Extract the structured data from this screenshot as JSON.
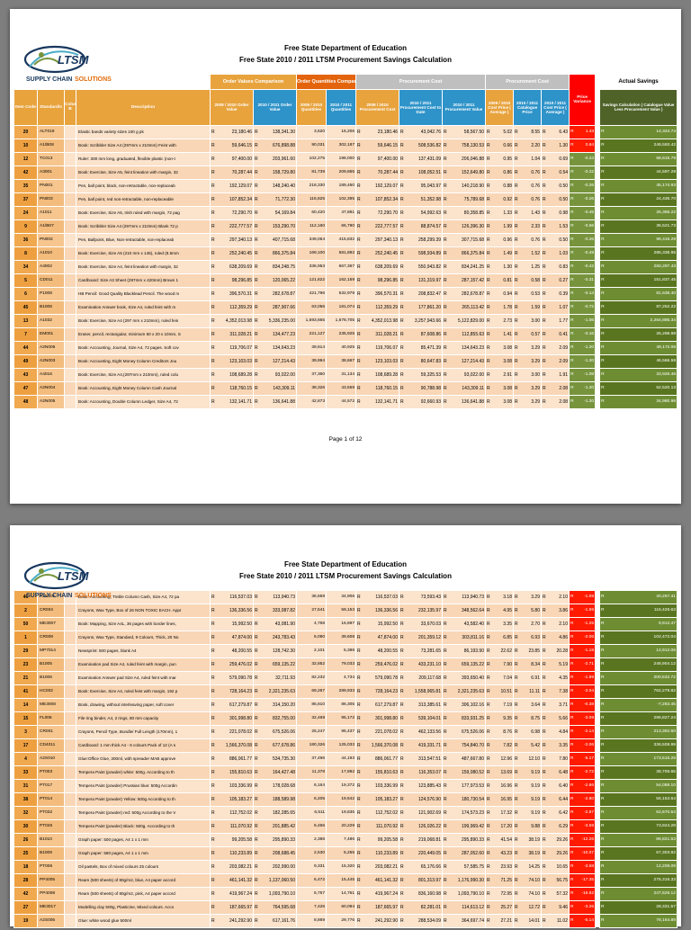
{
  "doc": {
    "title1": "Free State Department of Education",
    "title2": "Free State 2010 / 2011 LTSM Procurement  Savings Calculation",
    "footer1": "Page 1 of 12"
  },
  "logo": {
    "text": "LTSM",
    "tagline1": "SUPPLY CHAIN",
    "tagline2": "SOLUTIONS"
  },
  "table": {
    "currency": "R",
    "groups": {
      "order_values": "Order Values Comparison",
      "order_qty": "Order Quantities Comparison",
      "proc1": "Procurement Cost",
      "proc2": "Procurement Cost",
      "price_variance": "Price Variance",
      "actual_savings": "Actual Savings"
    },
    "cols": {
      "item": "Item Code",
      "std": "Standard/s",
      "colb": "Column B",
      "desc": "Description",
      "ov0910": "2009 / 2010 Order Value",
      "ov1011": "2010 / 2011 Order Value",
      "q0910": "2009 / 2010 Quantities",
      "q1011": "2010 / 2011 Quantities",
      "pc0910": "2009 / 2010 Procurement Cost",
      "pc1011": "2010 / 2011 Procurement Cost to Date",
      "pv1011": "2010 / 2011 Procurement Value",
      "cp0910": "2009 / 2010 Cost Price ( Average )",
      "cat1011": "2010 / 2011 Catalogue Price",
      "cp1011": "2010 / 2011 Cost Price ( Average )",
      "savings": "Savings Calculation ( Catalogue Value Less Procurement Value )"
    }
  },
  "pages": [
    {
      "rows": [
        [
          "20",
          "ALT019",
          "Elastic bands variety sizes 100 g pk",
          "23,180.46",
          "138,341.30",
          "3,620",
          "16,206",
          "23,180.46",
          "43,042.76",
          "58,567.50",
          "5.02",
          "8.55",
          "6.43",
          "1.43",
          "14,324.74",
          "r"
        ],
        [
          "10",
          "A1/B08",
          "Book: Scribbler Size A4 (297mm x 210mm) Feint with",
          "59,646.15",
          "676,898.88",
          "90,031",
          "302,187",
          "59,646.15",
          "508,536.82",
          "758,130.53",
          "0.66",
          "2.20",
          "1.30",
          "0.84",
          "249,593.42",
          "r"
        ],
        [
          "12",
          "TC013",
          "Ruler: 300 mm long, graduated, flexible plastic (non-t",
          "97,400.00",
          "203,961.60",
          "102,275",
          "198,000",
          "97,400.00",
          "137,431.09",
          "206,046.88",
          "0.95",
          "1.04",
          "0.69",
          "-0.24",
          "68,615.79",
          "g"
        ],
        [
          "42",
          "A3001",
          "Book: Exercise, Size A5, feint lineation with margin, 32",
          "70,287.44",
          "158,729.80",
          "81,739",
          "209,855",
          "70,287.44",
          "108,052.51",
          "152,649.80",
          "0.86",
          "0.76",
          "0.54",
          "-0.22",
          "44,597.29",
          "g"
        ],
        [
          "35",
          "PN001",
          "Pen, ball point, black, non-retractable, non-replaceab",
          "192,129.07",
          "148,240.40",
          "218,330",
          "189,460",
          "192,129.07",
          "95,043.97",
          "140,218.90",
          "0.88",
          "0.76",
          "0.50",
          "-0.26",
          "45,174.93",
          "g"
        ],
        [
          "37",
          "PN003",
          "Pen, ball point, red non-retractable, non-replaceable",
          "107,852.34",
          "71,772.30",
          "116,825",
          "102,395",
          "107,852.34",
          "51,352.98",
          "75,789.68",
          "0.92",
          "0.76",
          "0.50",
          "-0.26",
          "24,436.70",
          "g"
        ],
        [
          "24",
          "A1011",
          "Book: Exercise, Size A5, Irish ruled with margin, 72 pag",
          "72,290.70",
          "54,169.84",
          "60,420",
          "47,881",
          "72,290.70",
          "54,992.63",
          "80,358.85",
          "1.33",
          "1.43",
          "0.98",
          "-0.45",
          "25,366.22",
          "g"
        ],
        [
          "9",
          "A1/B07",
          "Book: Scribbler Size A4 (297mm x 210mm) Blank 72 p",
          "222,777.57",
          "153,290.70",
          "112,160",
          "65,790",
          "222,777.57",
          "88,874.57",
          "126,396.30",
          "1.99",
          "2.33",
          "1.53",
          "-0.56",
          "36,521.73",
          "g"
        ],
        [
          "36",
          "PN002",
          "Pen, Ballpoint, Blue, Non-retractable, non-replaceab",
          "297,340.13",
          "407,715.68",
          "349,064",
          "415,832",
          "297,340.13",
          "258,299.39",
          "307,715.68",
          "0.96",
          "0.76",
          "0.50",
          "-0.26",
          "99,416.29",
          "g"
        ],
        [
          "8",
          "A1010",
          "Book: Exercise, Size A5 (210 mm x 145), ruled (8.5mm",
          "252,240.45",
          "866,375.84",
          "169,100",
          "581,892",
          "252,240.45",
          "598,934.89",
          "866,375.84",
          "1.49",
          "1.52",
          "1.03",
          "-0.49",
          "285,338.95",
          "g"
        ],
        [
          "34",
          "A4002",
          "Book: Exercise, Size A4, feint lineation with margin, 32",
          "638,209.69",
          "834,248.75",
          "336,953",
          "667,367",
          "638,209.69",
          "550,943.82",
          "834,241.25",
          "1.30",
          "1.25",
          "0.83",
          "-0.42",
          "283,297.43",
          "g"
        ],
        [
          "5",
          "CD011",
          "Cardboard: Size A3 Sheet (297mm x 420mm) Brown 1",
          "98,296.85",
          "120,065.22",
          "121,622",
          "162,159",
          "98,296.85",
          "131,319.97",
          "287,157.42",
          "0.81",
          "0.58",
          "0.27",
          "-0.31",
          "151,837.45",
          "g"
        ],
        [
          "6",
          "P1008",
          "HB Pencil: Good Quality Blacklead Pencil. The wood m",
          "396,570.31",
          "282,678.87",
          "421,796",
          "532,979",
          "396,570.31",
          "208,832.47",
          "282,678.87",
          "0.94",
          "0.53",
          "0.39",
          "-0.14",
          "81,636.40",
          "g"
        ],
        [
          "45",
          "B1008",
          "Examination Answer book, Size A4, ruled feint with m",
          "112,359.29",
          "287,907.66",
          "63,056",
          "181,074",
          "112,359.29",
          "177,861.20",
          "265,113.42",
          "1.78",
          "1.59",
          "1.07",
          "-0.72",
          "87,252.22",
          "g"
        ],
        [
          "13",
          "A1032",
          "Book: Exercise, Size A4 (297 mm x 210mm), ruled fein",
          "4,352,013.98",
          "5,336,235.00",
          "1,593,665",
          "1,678,705",
          "4,352,013.98",
          "3,257,943.66",
          "5,122,829.00",
          "2.73",
          "3.00",
          "1.77",
          "-1.06",
          "2,264,885.34",
          "g"
        ],
        [
          "7",
          "EM001",
          "Eraser, pencil, rectangular, minimum 60 x 20 x 10mm, S",
          "311,028.21",
          "134,477.23",
          "221,127",
          "235,925",
          "311,028.21",
          "87,608.86",
          "112,855.63",
          "1.41",
          "0.57",
          "0.41",
          "-0.16",
          "25,298.98",
          "g"
        ],
        [
          "44",
          "A2N006",
          "Book: Accounting, Journal, Size A4, 72 pages. Soft cov",
          "119,706.07",
          "134,643.23",
          "39,814",
          "40,925",
          "119,706.07",
          "85,471.39",
          "134,643.23",
          "3.08",
          "3.29",
          "2.09",
          "-1.20",
          "49,172.06",
          "g"
        ],
        [
          "49",
          "A2N003",
          "Book: Accounting, Eight Money Column Creditors Jou",
          "123,103.03",
          "127,214.43",
          "39,994",
          "38,667",
          "123,103.03",
          "80,647.83",
          "127,214.43",
          "3.08",
          "3.29",
          "2.09",
          "-1.20",
          "46,566.59",
          "g"
        ],
        [
          "43",
          "A4016",
          "Book: Exercise, Size A4,(297mm x 210mm), ruled colu",
          "108,689.28",
          "93,022.00",
          "37,360",
          "31,134",
          "108,689.28",
          "59,325.53",
          "93,022.00",
          "2.91",
          "3.00",
          "1.91",
          "-1.08",
          "33,926.46",
          "g"
        ],
        [
          "47",
          "A2N004",
          "Book: Accounting, Eight Money Column Cash Journal",
          "118,760.15",
          "143,309.11",
          "38,326",
          "43,559",
          "118,760.15",
          "90,788.98",
          "143,309.11",
          "3.08",
          "3.29",
          "2.08",
          "-1.20",
          "52,520.13",
          "g"
        ],
        [
          "48",
          "A2N005",
          "Book: Accounting, Double Column Ledger, Size A4, 72",
          "132,141.71",
          "136,641.88",
          "42,873",
          "44,572",
          "132,141.71",
          "92,660.93",
          "136,641.88",
          "3.08",
          "3.29",
          "2.08",
          "-1.20",
          "34,980.96",
          "g"
        ]
      ]
    },
    {
      "rows": [
        [
          "46",
          "A2N001",
          "Book: Accounting, Treble Column Cash, Size A4, 72 pa",
          "116,537.03",
          "113,940.73",
          "36,659",
          "34,906",
          "116,537.03",
          "73,593.43",
          "113,940.73",
          "3.18",
          "3.29",
          "2.10",
          "-1.09",
          "40,267.41",
          "r"
        ],
        [
          "2",
          "CR004",
          "Crayons, Wax Type, Box of 26 NON TOXIC EACH. Appr",
          "136,336.56",
          "333,087.82",
          "27,541",
          "59,153",
          "136,336.56",
          "232,135.97",
          "348,562.64",
          "4.95",
          "5.80",
          "3.86",
          "-1.59",
          "116,426.63",
          "r"
        ],
        [
          "50",
          "ME3007",
          "Book: Mapping, Size A4L, 36 pages with border lines,",
          "15,992.50",
          "43,081.90",
          "4,768",
          "16,697",
          "15,992.50",
          "33,670.03",
          "43,582.40",
          "3.35",
          "2.70",
          "2.10",
          "-1.25",
          "9,912.47",
          "r"
        ],
        [
          "1",
          "CR009",
          "Crayons, Wax Type, Standard, 9 Colours, Thick, 20 No",
          "47,874.00",
          "243,783.43",
          "6,090",
          "39,608",
          "47,874.00",
          "201,359.12",
          "303,811.16",
          "6.85",
          "6.93",
          "4.86",
          "-2.06",
          "102,472.04",
          "r"
        ],
        [
          "29",
          "MP7014",
          "Newsprint: 500 pages, blank A4",
          "48,200.55",
          "128,742.30",
          "2,101",
          "5,398",
          "48,200.55",
          "73,281.65",
          "86,193.90",
          "22.62",
          "23.85",
          "20.28",
          "-1.19",
          "12,912.06",
          "r"
        ],
        [
          "23",
          "B1005",
          "Examination pad Size A4, ruled feint with margin, pun",
          "259,476.02",
          "659,135.22",
          "32,852",
          "79,033",
          "259,476.02",
          "433,231.10",
          "659,135.22",
          "7.90",
          "8.34",
          "5.19",
          "-2.71",
          "248,904.12",
          "r"
        ],
        [
          "21",
          "B1006",
          "Examination Answer pad Size A4, ruled feint with mar",
          "579,090.78",
          "32,711.93",
          "82,232",
          "4,734",
          "579,090.78",
          "209,117.68",
          "393,650.40",
          "7.04",
          "6.91",
          "4.35",
          "-1.99",
          "200,532.72",
          "r"
        ],
        [
          "41",
          "HC002",
          "Book: Exercise, Size A4, ruled feint with margin, 192 p",
          "728,164.23",
          "2,321,235.63",
          "69,287",
          "289,933",
          "728,164.23",
          "1,558,965.81",
          "2,321,235.63",
          "10.51",
          "11.11",
          "7.38",
          "-3.04",
          "762,279.82",
          "r"
        ],
        [
          "14",
          "ME3008",
          "Book, drawing, without interleaving paper, soft cover",
          "617,279.87",
          "314,150.20",
          "85,810",
          "86,305",
          "617,279.87",
          "313,385.61",
          "306,102.16",
          "7.19",
          "3.64",
          "3.71",
          "-0.38",
          "-7,283.45",
          "r"
        ],
        [
          "15",
          "FL006",
          "File ring binder, A4, 2 rings, 80 mm capacity",
          "301,998.80",
          "832,755.00",
          "32,469",
          "95,172",
          "301,998.80",
          "539,104.01",
          "833,931.25",
          "9.35",
          "8.75",
          "5.66",
          "-3.09",
          "296,827.24",
          "r"
        ],
        [
          "3",
          "CR001",
          "Crayons, Pencil Type, Bundle/ Full Length (170mm), 1",
          "221,078.02",
          "675,526.06",
          "25,247",
          "95,437",
          "221,078.02",
          "462,133.56",
          "675,526.06",
          "8.76",
          "6.98",
          "4.84",
          "-2.14",
          "213,392.50",
          "r"
        ],
        [
          "17",
          "CD4011",
          "Cardboard: 1 mm thick A4 - 6 colours Pack of 12 (A s",
          "1,566,370.08",
          "677,678.86",
          "180,326",
          "125,033",
          "1,566,370.08",
          "419,331.71",
          "754,840.70",
          "7.82",
          "5.42",
          "3.35",
          "-2.06",
          "336,508.99",
          "r"
        ],
        [
          "4",
          "A2S010",
          "Glue:Office Glue, 300ml, with spreader MAB approve",
          "886,061.77",
          "534,735.30",
          "37,496",
          "44,193",
          "886,061.77",
          "313,547.51",
          "487,667.80",
          "12.96",
          "12.10",
          "7.80",
          "-5.17",
          "173,516.29",
          "r"
        ],
        [
          "33",
          "PT003",
          "Tempera Paint (powder) white: 500g. According to th",
          "155,810.63",
          "164,427.48",
          "11,378",
          "17,892",
          "155,810.63",
          "116,353.07",
          "159,080.52",
          "13.69",
          "9.19",
          "6.48",
          "-2.72",
          "38,706.65",
          "r"
        ],
        [
          "31",
          "PT017",
          "Tempera Paint (powder) Prussian blue: 500g Accordin",
          "103,336.99",
          "178,028.68",
          "6,164",
          "19,372",
          "103,336.99",
          "123,885.43",
          "177,973.53",
          "16.96",
          "9.19",
          "6.40",
          "-2.86",
          "54,088.10",
          "r"
        ],
        [
          "38",
          "PT014",
          "Tempera Paint (powder) Yellow: 500g According to th",
          "105,183.27",
          "188,589.98",
          "6,205",
          "19,642",
          "105,183.27",
          "124,576.90",
          "180,730.54",
          "16.95",
          "9.19",
          "6.44",
          "-2.80",
          "56,153.64",
          "r"
        ],
        [
          "32",
          "PT032",
          "Tempera Paint (powder) red: 500g According to the V",
          "112,752.02",
          "182,285.65",
          "6,511",
          "19,835",
          "112,752.02",
          "121,902.69",
          "174,573.23",
          "17.32",
          "9.19",
          "6.42",
          "-2.87",
          "52,670.54",
          "r"
        ],
        [
          "30",
          "PT026",
          "Tempera Paint (powder) Black: 500g. According to th",
          "111,070.92",
          "201,885.42",
          "6,456",
          "20,229",
          "111,070.92",
          "126,026.22",
          "199,969.42",
          "17.20",
          "9.88",
          "6.29",
          "-3.59",
          "73,924.28",
          "r"
        ],
        [
          "26",
          "B1010",
          "Graph paper: 500 pages, A4 1 x 1 mm",
          "99,205.58",
          "295,890.33",
          "2,388",
          "7,486",
          "99,205.58",
          "219,068.81",
          "295,890.33",
          "41.54",
          "38.19",
          "29.26",
          "-12.26",
          "86,821.53",
          "r"
        ],
        [
          "25",
          "B1009",
          "Graph paper: 580 pages, A4 1 x 1 mm",
          "110,233.89",
          "208,688.45",
          "2,530",
          "5,255",
          "110,233.89",
          "220,449.05",
          "287,052.60",
          "43.23",
          "38.19",
          "29.26",
          "-10.07",
          "67,303.92",
          "r"
        ],
        [
          "18",
          "PT006",
          "Oil pastels, Box of mixed colours 25 colours",
          "203,082.21",
          "202,990.00",
          "9,331",
          "15,320",
          "203,082.21",
          "65,176.66",
          "57,585.75",
          "23.93",
          "14.25",
          "10.65",
          "-3.58",
          "12,208.09",
          "r"
        ],
        [
          "28",
          "PP4005",
          "Ream (500 sheets) of 80g/m2, blue, A4 paper accord",
          "461,141.32",
          "1,137,060.50",
          "6,472",
          "15,445",
          "461,141.32",
          "801,313.97",
          "1,176,990.30",
          "71.25",
          "74.10",
          "56.75",
          "-17.35",
          "275,316.33",
          "r"
        ],
        [
          "42",
          "PP4008",
          "Ream (500 sheets) of 80g/m2, pink, A4 paper accord",
          "419,967.24",
          "1,093,790.10",
          "5,757",
          "14,761",
          "419,967.24",
          "836,160.98",
          "1,093,790.10",
          "72.95",
          "74.10",
          "57.32",
          "-16.82",
          "247,629.12",
          "r"
        ],
        [
          "27",
          "ME3017",
          "Modelling clay 500g, Plasticine, Mixed colours. Acco",
          "187,665.97",
          "764,595.68",
          "7,426",
          "60,094",
          "187,665.97",
          "82,281.01",
          "114,613.12",
          "25.27",
          "12.72",
          "9.46",
          "-3.26",
          "28,331.57",
          "r"
        ],
        [
          "19",
          "A2S005",
          "Glue: white wood glue 500ml",
          "241,292.90",
          "617,161.76",
          "8,869",
          "29,776",
          "241,292.90",
          "288,534.09",
          "364,697.74",
          "27.21",
          "14.01",
          "11.02",
          "-5.14",
          "78,164.89",
          "r"
        ]
      ]
    }
  ]
}
